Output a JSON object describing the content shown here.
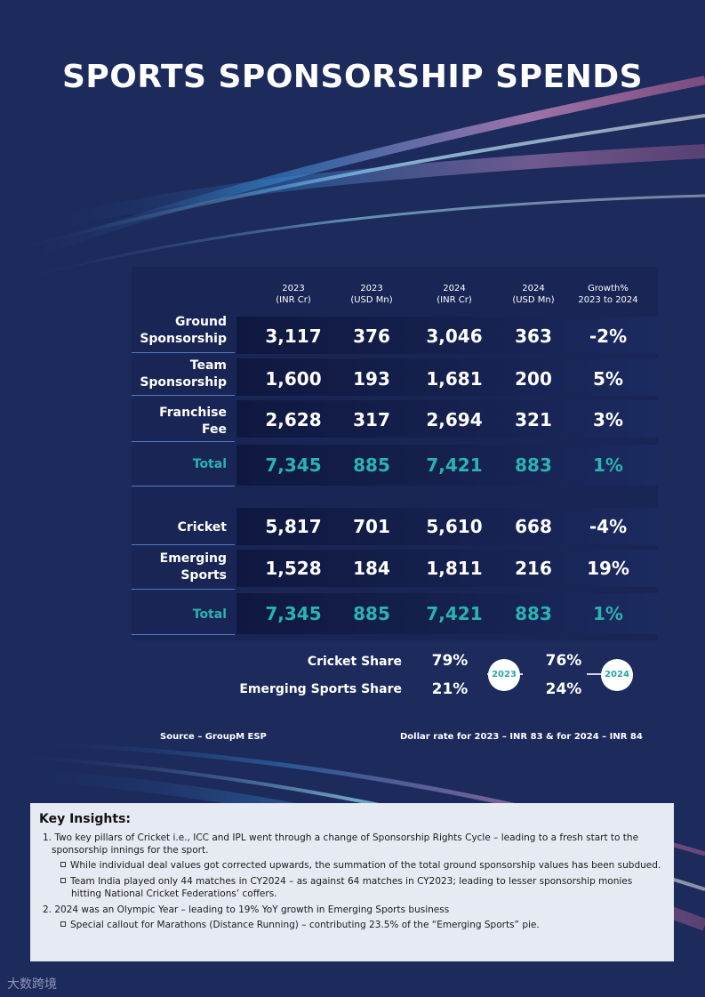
{
  "title": "SPORTS SPONSORSHIP SPENDS",
  "headers": [
    {
      "line1": "2023",
      "line2": "(INR Cr)"
    },
    {
      "line1": "2023",
      "line2": "(USD Mn)"
    },
    {
      "line1": "2024",
      "line2": "(INR Cr)"
    },
    {
      "line1": "2024",
      "line2": "(USD Mn)"
    },
    {
      "line1": "Growth%",
      "line2": "2023 to 2024"
    }
  ],
  "table1": {
    "rows": [
      {
        "label1": "Ground",
        "label2": "Sponsorship",
        "values": [
          "3,117",
          "376",
          "3,046",
          "363",
          "-2%"
        ]
      },
      {
        "label1": "Team",
        "label2": "Sponsorship",
        "values": [
          "1,600",
          "193",
          "1,681",
          "200",
          "5%"
        ]
      },
      {
        "label1": "Franchise",
        "label2": "Fee",
        "values": [
          "2,628",
          "317",
          "2,694",
          "321",
          "3%"
        ]
      }
    ],
    "total": {
      "label": "Total",
      "values": [
        "7,345",
        "885",
        "7,421",
        "883",
        "1%"
      ]
    }
  },
  "table2": {
    "rows": [
      {
        "label1": "Cricket",
        "label2": "",
        "values": [
          "5,817",
          "701",
          "5,610",
          "668",
          "-4%"
        ]
      },
      {
        "label1": "Emerging",
        "label2": "Sports",
        "values": [
          "1,528",
          "184",
          "1,811",
          "216",
          "19%"
        ]
      }
    ],
    "total": {
      "label": "Total",
      "values": [
        "7,345",
        "885",
        "7,421",
        "883",
        "1%"
      ]
    }
  },
  "shares": {
    "cricket_label": "Cricket Share",
    "emerging_label": "Emerging Sports Share",
    "cricket_2023": "79%",
    "emerging_2023": "21%",
    "cricket_2024": "76%",
    "emerging_2024": "24%",
    "badge_2023": "2023",
    "badge_2024": "2024"
  },
  "footer": {
    "source": "Source – GroupM ESP",
    "dollar_rate": "Dollar rate for 2023 – INR 83 & for 2024 – INR 84"
  },
  "insights": {
    "heading": "Key Insights:",
    "point1": "1. Two key pillars of Cricket i.e., ICC and IPL went through a change of Sponsorship Rights Cycle – leading to a fresh start to the sponsorship innings for the sport.",
    "point1_sub1": "While individual deal values got corrected upwards, the summation of the total ground sponsorship values has been subdued.",
    "point1_sub2": "Team India played only 44 matches in CY2024 – as against 64 matches in CY2023; leading to lesser sponsorship monies hitting National Cricket Federations’ coffers.",
    "point2": "2. 2024 was an Olympic Year – leading to 19% YoY growth in Emerging Sports business",
    "point2_sub1": "Special callout for Marathons (Distance Running) – contributing 23.5% of the “Emerging Sports” pie."
  },
  "watermark": "大数跨境",
  "colors": {
    "background": "#1c2a5c",
    "accent_teal": "#2bb3b0",
    "insight_box": "#e6ebf3"
  }
}
